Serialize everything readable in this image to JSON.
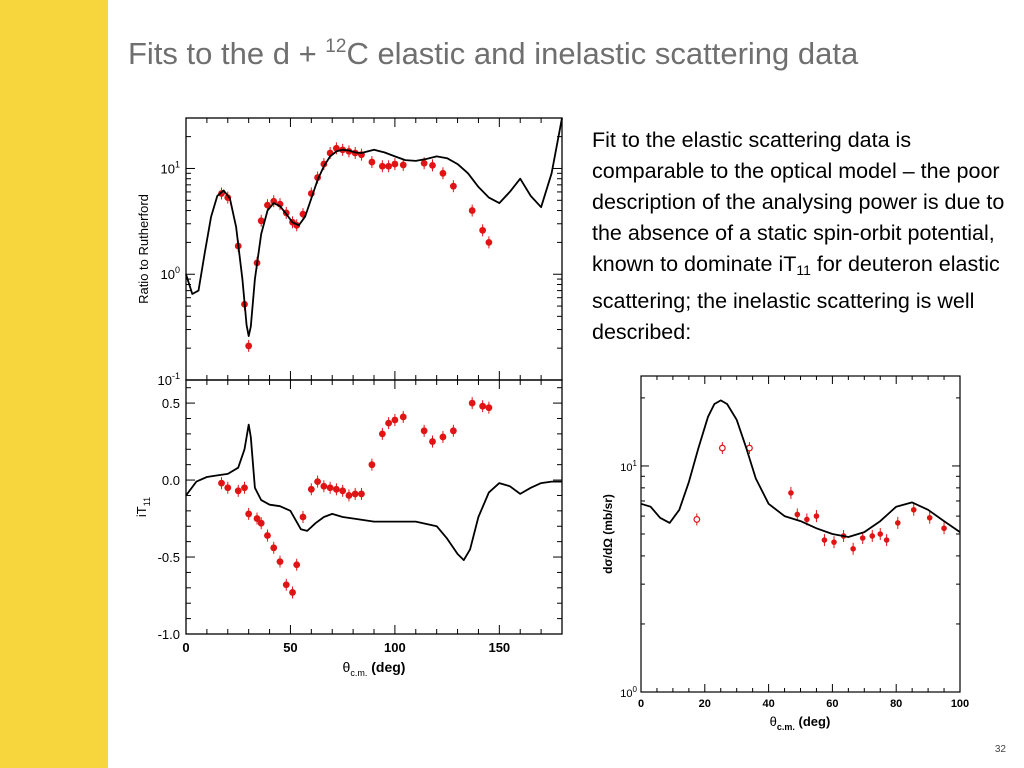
{
  "slide": {
    "title_pre": "Fits to the d + ",
    "title_sup": "12",
    "title_post": "C elastic and inelastic scattering data",
    "text_part1": "Fit to the elastic scattering data is comparable to the optical model – the poor description of the analysing power is due to the absence of a static spin-orbit potential, known to dominate iT",
    "text_sub": "11",
    "text_part2": " for deuteron elastic scattering; the inelastic scattering is well described:",
    "page_number": "32",
    "colors": {
      "accent_bar": "#f6d63c",
      "data_points": "#e01414",
      "fit_curve": "#000000"
    }
  },
  "chart_data": [
    {
      "type": "scatter",
      "title": "",
      "ylabel": "Ratio to Rutherford",
      "yscale": "log",
      "xlim": [
        0,
        180
      ],
      "ylim": [
        0.1,
        30
      ],
      "ytick_labels": [
        {
          "v": 10,
          "b": "10",
          "e": "1"
        },
        {
          "v": 1,
          "b": "10",
          "e": "0"
        },
        {
          "v": 0.1,
          "b": "10",
          "e": "-1"
        }
      ],
      "series": [
        {
          "kind": "points",
          "x": [
            17,
            20,
            25,
            28,
            30,
            34,
            36,
            39,
            42,
            45,
            48,
            51,
            53,
            56,
            60,
            63,
            66,
            69,
            72,
            75,
            78,
            81,
            84,
            89,
            94,
            97,
            100,
            104,
            114,
            118,
            123,
            128,
            137,
            142,
            145
          ],
          "y": [
            5.8,
            5.3,
            1.85,
            0.52,
            0.21,
            1.28,
            3.2,
            4.5,
            4.9,
            4.6,
            3.8,
            3.1,
            2.9,
            3.7,
            5.8,
            8.2,
            11,
            14,
            15.5,
            15,
            14.5,
            14,
            13.5,
            11.5,
            10.5,
            10.5,
            11,
            10.8,
            11.2,
            10.7,
            9,
            6.8,
            4,
            2.6,
            2
          ]
        },
        {
          "kind": "curve",
          "x": [
            0,
            3,
            6,
            9,
            12,
            15,
            18,
            21,
            24,
            27,
            29,
            30,
            31,
            33,
            36,
            39,
            42,
            45,
            48,
            51,
            54,
            57,
            60,
            63,
            66,
            69,
            72,
            75,
            78,
            81,
            84,
            87,
            90,
            95,
            100,
            105,
            110,
            115,
            120,
            125,
            130,
            135,
            140,
            145,
            150,
            155,
            160,
            165,
            170,
            175,
            180
          ],
          "y": [
            1.0,
            0.65,
            0.7,
            1.6,
            3.5,
            5.5,
            6.2,
            5.2,
            2.8,
            0.9,
            0.33,
            0.26,
            0.32,
            0.9,
            2.4,
            4.0,
            4.7,
            4.4,
            3.7,
            3.1,
            2.9,
            3.5,
            5.2,
            7.8,
            10.5,
            13,
            14.5,
            15,
            14.8,
            14.2,
            14,
            14.5,
            15,
            14.2,
            13,
            12,
            11.8,
            12.3,
            13,
            12.5,
            11,
            9,
            6.7,
            5.3,
            4.7,
            6,
            8,
            5.5,
            4.3,
            9,
            30
          ]
        }
      ]
    },
    {
      "type": "scatter",
      "title": "",
      "xlabel": "θc.m. (deg)",
      "ylabel": "iT11",
      "xlim": [
        0,
        180
      ],
      "ylim": [
        -1.0,
        0.65
      ],
      "xticks": [
        0,
        50,
        100,
        150
      ],
      "yticks": [
        0.5,
        0.0,
        -0.5,
        -1.0
      ],
      "ytick_labels": [
        "0.5",
        "0.0",
        "-0.5",
        "-1.0"
      ],
      "series": [
        {
          "kind": "points",
          "x": [
            17,
            20,
            25,
            28,
            30,
            34,
            36,
            39,
            42,
            45,
            48,
            51,
            53,
            56,
            60,
            63,
            66,
            69,
            72,
            75,
            78,
            81,
            84,
            89,
            94,
            97,
            100,
            104,
            114,
            118,
            123,
            128,
            137,
            142,
            145
          ],
          "y": [
            -0.02,
            -0.05,
            -0.07,
            -0.05,
            -0.22,
            -0.25,
            -0.28,
            -0.36,
            -0.44,
            -0.53,
            -0.68,
            -0.73,
            -0.55,
            -0.24,
            -0.06,
            -0.01,
            -0.04,
            -0.05,
            -0.06,
            -0.07,
            -0.1,
            -0.09,
            -0.09,
            0.1,
            0.3,
            0.37,
            0.39,
            0.41,
            0.32,
            0.25,
            0.28,
            0.32,
            0.5,
            0.48,
            0.47
          ]
        },
        {
          "kind": "curve",
          "x": [
            0,
            5,
            10,
            15,
            20,
            25,
            28,
            30,
            31,
            33,
            36,
            40,
            45,
            50,
            55,
            58,
            62,
            66,
            70,
            75,
            80,
            90,
            100,
            110,
            120,
            125,
            130,
            133,
            136,
            140,
            145,
            150,
            155,
            160,
            165,
            170,
            175,
            180
          ],
          "y": [
            -0.1,
            -0.01,
            0.02,
            0.03,
            0.04,
            0.08,
            0.2,
            0.36,
            0.28,
            -0.05,
            -0.13,
            -0.16,
            -0.17,
            -0.2,
            -0.32,
            -0.33,
            -0.28,
            -0.24,
            -0.22,
            -0.24,
            -0.25,
            -0.27,
            -0.27,
            -0.27,
            -0.3,
            -0.38,
            -0.48,
            -0.52,
            -0.45,
            -0.24,
            -0.08,
            -0.02,
            -0.04,
            -0.09,
            -0.05,
            -0.02,
            -0.01,
            -0.01
          ]
        }
      ]
    },
    {
      "type": "scatter",
      "title": "",
      "xlabel": "θc.m. (deg)",
      "ylabel": "dσ/dΩ (mb/sr)",
      "yscale": "log",
      "xlim": [
        0,
        100
      ],
      "ylim": [
        1,
        25
      ],
      "xticks": [
        0,
        20,
        40,
        60,
        80,
        100
      ],
      "ytick_labels": [
        {
          "v": 10,
          "b": "10",
          "e": "1"
        },
        {
          "v": 1,
          "b": "10",
          "e": "0"
        }
      ],
      "series": [
        {
          "kind": "open_points",
          "x": [
            17.5,
            25.5,
            34
          ],
          "y": [
            5.8,
            12,
            12
          ]
        },
        {
          "kind": "points",
          "x": [
            47,
            49,
            52,
            55,
            57.5,
            60.5,
            63.5,
            66.5,
            69.5,
            72.5,
            75,
            77,
            80.5,
            85.5,
            90.5,
            95
          ],
          "y": [
            7.6,
            6.1,
            5.8,
            6.0,
            4.7,
            4.6,
            4.9,
            4.3,
            4.8,
            4.9,
            5.0,
            4.7,
            5.6,
            6.4,
            5.9,
            5.3
          ]
        },
        {
          "kind": "curve",
          "x": [
            0,
            3,
            6,
            9,
            12,
            15,
            18,
            21,
            23,
            25,
            27,
            30,
            33,
            36,
            40,
            45,
            50,
            55,
            60,
            65,
            70,
            75,
            80,
            85,
            90,
            95,
            100
          ],
          "y": [
            6.8,
            6.6,
            5.9,
            5.6,
            6.4,
            8.5,
            12,
            16.5,
            18.8,
            19.5,
            18.8,
            16,
            12,
            8.8,
            6.8,
            6.0,
            5.7,
            5.3,
            5.0,
            4.85,
            5.1,
            5.7,
            6.6,
            6.9,
            6.4,
            5.7,
            5.1
          ]
        }
      ]
    }
  ]
}
